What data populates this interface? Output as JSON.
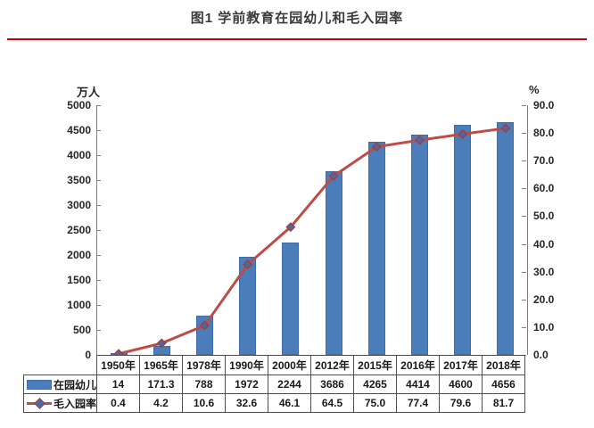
{
  "title": "图1  学前教育在园幼儿和毛入园率",
  "accent_rule_color": "#c80000",
  "chart_data": {
    "type": "bar+line combo with data table",
    "categories": [
      "1950年",
      "1965年",
      "1978年",
      "1990年",
      "2000年",
      "2012年",
      "2015年",
      "2016年",
      "2017年",
      "2018年"
    ],
    "series": [
      {
        "name": "在园幼儿",
        "type": "bar",
        "axis": "left",
        "color": "#4a7dba",
        "values": [
          14,
          171.3,
          788,
          1972,
          2244,
          3686,
          4265,
          4414,
          4600,
          4656
        ],
        "display": [
          "14",
          "171.3",
          "788",
          "1972",
          "2244",
          "3686",
          "4265",
          "4414",
          "4600",
          "4656"
        ]
      },
      {
        "name": "毛入园率",
        "type": "line",
        "axis": "right",
        "color": "#bf4b47",
        "marker": "diamond",
        "marker_fill": "#4a69a5",
        "values": [
          0.4,
          4.2,
          10.6,
          32.6,
          46.1,
          64.5,
          75.0,
          77.4,
          79.6,
          81.7
        ],
        "display": [
          "0.4",
          "4.2",
          "10.6",
          "32.6",
          "46.1",
          "64.5",
          "75.0",
          "77.4",
          "79.6",
          "81.7"
        ]
      }
    ],
    "left_axis": {
      "label": "万人",
      "min": 0,
      "max": 5000,
      "step": 500
    },
    "right_axis": {
      "label": "%",
      "min": 0,
      "max": 90,
      "step": 10,
      "decimals": 1
    },
    "grid": false,
    "legend_position": "table-left"
  }
}
